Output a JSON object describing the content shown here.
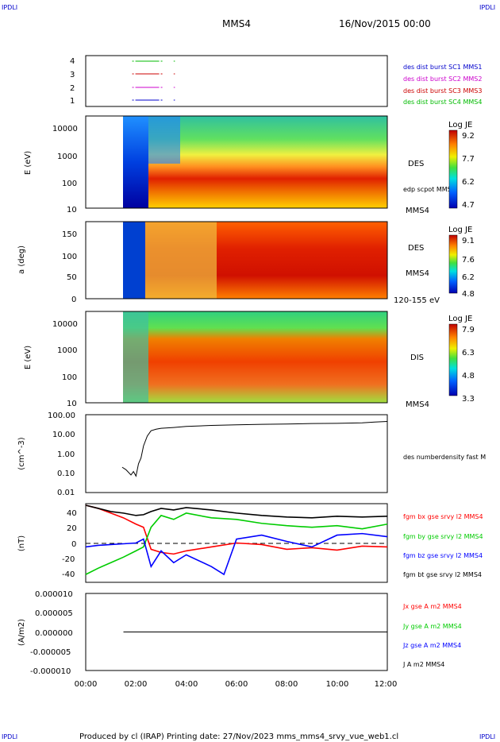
{
  "corner_label": "IPDLI",
  "header": {
    "spacecraft": "MMS4",
    "date": "16/Nov/2015 00:00"
  },
  "footer": "Produced by cl (IRAP)   Printing date: 27/Nov/2023   mms_mms4_srvy_vue_web1.cl",
  "time_axis": {
    "ticks": [
      "00:00",
      "02:00",
      "04:00",
      "06:00",
      "08:00",
      "10:00",
      "12:00"
    ],
    "range_hours": [
      0,
      12
    ]
  },
  "chart_data": [
    {
      "type": "line",
      "panel": "burst",
      "y_ticks": [
        "4",
        "3",
        "2",
        "1"
      ],
      "series": [
        {
          "name": "des dist burst SC1 MMS1",
          "color": "#0000cc",
          "row": 1,
          "segments": [
            [
              1.85,
              3.1
            ],
            [
              3.5,
              3.55
            ]
          ]
        },
        {
          "name": "des dist burst SC2 MMS2",
          "color": "#cc00cc",
          "row": 2,
          "segments": [
            [
              1.85,
              3.1
            ],
            [
              3.5,
              3.55
            ]
          ]
        },
        {
          "name": "des dist burst SC3 MMS3",
          "color": "#cc0000",
          "row": 3,
          "segments": [
            [
              1.85,
              3.1
            ],
            [
              3.5,
              3.55
            ]
          ]
        },
        {
          "name": "des dist burst SC4 MMS4",
          "color": "#00bb00",
          "row": 4,
          "segments": [
            [
              1.85,
              3.1
            ],
            [
              3.5,
              3.55
            ]
          ]
        }
      ]
    },
    {
      "type": "heatmap",
      "panel": "des_energy",
      "ylabel": "E (eV)",
      "y_ticks": [
        "10000",
        "1000",
        "100",
        "10"
      ],
      "right_labels": [
        "DES",
        "MMS4"
      ],
      "overlay_label": "edp scpot MMS4",
      "colorbar": {
        "title": "Log JE",
        "ticks": [
          "9.2",
          "7.7",
          "6.2",
          "4.7"
        ]
      }
    },
    {
      "type": "heatmap",
      "panel": "des_pitch",
      "ylabel": "a (deg)",
      "y_ticks": [
        "150",
        "100",
        "50",
        "0"
      ],
      "right_labels": [
        "DES",
        "MMS4",
        "120-155 eV"
      ],
      "colorbar": {
        "title": "Log JE",
        "ticks": [
          "9.1",
          "7.6",
          "6.2",
          "4.8"
        ]
      }
    },
    {
      "type": "heatmap",
      "panel": "dis_energy",
      "ylabel": "E (eV)",
      "y_ticks": [
        "10000",
        "1000",
        "100",
        "10"
      ],
      "right_labels": [
        "DIS",
        "MMS4"
      ],
      "colorbar": {
        "title": "Log JE",
        "ticks": [
          "7.9",
          "6.3",
          "4.8",
          "3.3"
        ]
      }
    },
    {
      "type": "line",
      "panel": "density",
      "ylabel": "(cm^-3)",
      "y_scale": "log",
      "y_ticks": [
        "100.00",
        "10.00",
        "1.00",
        "0.10",
        "0.01"
      ],
      "series": [
        {
          "name": "des numberdensity fast M",
          "color": "#000000",
          "x": [
            1.45,
            1.6,
            1.8,
            1.9,
            2.0,
            2.1,
            2.2,
            2.3,
            2.45,
            2.6,
            2.8,
            3.0,
            3.5,
            4.0,
            5.0,
            6.0,
            7.0,
            8.0,
            9.0,
            10.0,
            11.0,
            11.5,
            12.0
          ],
          "y": [
            0.2,
            0.15,
            0.08,
            0.12,
            0.07,
            0.3,
            0.6,
            2.5,
            8.0,
            15.0,
            18.0,
            20.0,
            22.0,
            25.0,
            28.0,
            30.0,
            32.0,
            33.0,
            35.0,
            36.0,
            38.0,
            42.0,
            45.0
          ]
        }
      ]
    },
    {
      "type": "line",
      "panel": "magnetic_field",
      "ylabel": "(nT)",
      "y_ticks": [
        "40",
        "20",
        "0",
        "-20",
        "-40"
      ],
      "ylim": [
        -50,
        50
      ],
      "series": [
        {
          "name": "fgm bx gse srvy l2 MMS4",
          "color": "#ff0000",
          "x": [
            0,
            0.5,
            1.0,
            1.5,
            2.0,
            2.3,
            2.6,
            3.0,
            3.5,
            4.0,
            5.0,
            6.0,
            7.0,
            8.0,
            9.0,
            10.0,
            11.0,
            12.0
          ],
          "y": [
            48,
            44,
            38,
            32,
            24,
            20,
            -8,
            -12,
            -14,
            -10,
            -5,
            0,
            -2,
            -8,
            -6,
            -9,
            -4,
            -5
          ]
        },
        {
          "name": "fgm by gse srvy l2 MMS4",
          "color": "#00cc00",
          "x": [
            0,
            0.5,
            1.0,
            1.5,
            2.0,
            2.3,
            2.6,
            3.0,
            3.5,
            4.0,
            5.0,
            6.0,
            7.0,
            8.0,
            9.0,
            10.0,
            11.0,
            12.0
          ],
          "y": [
            -40,
            -32,
            -25,
            -18,
            -10,
            -5,
            20,
            35,
            30,
            38,
            32,
            30,
            25,
            22,
            20,
            22,
            18,
            24
          ]
        },
        {
          "name": "fgm bz gse srvy l2 MMS4",
          "color": "#0000ff",
          "x": [
            0,
            0.5,
            1.0,
            1.5,
            2.0,
            2.3,
            2.6,
            3.0,
            3.5,
            4.0,
            5.0,
            5.5,
            6.0,
            7.0,
            8.0,
            9.0,
            10.0,
            11.0,
            12.0
          ],
          "y": [
            -5,
            -3,
            -2,
            -1,
            0,
            5,
            -30,
            -10,
            -25,
            -15,
            -30,
            -40,
            5,
            10,
            2,
            -5,
            10,
            12,
            8
          ]
        },
        {
          "name": "fgm bt gse srvy l2 MMS4",
          "color": "#000000",
          "x": [
            0,
            0.5,
            1.0,
            1.5,
            2.0,
            2.3,
            2.6,
            3.0,
            3.5,
            4.0,
            5.0,
            6.0,
            7.0,
            8.0,
            9.0,
            10.0,
            11.0,
            12.0
          ],
          "y": [
            48,
            44,
            40,
            38,
            35,
            36,
            40,
            44,
            42,
            45,
            42,
            38,
            35,
            33,
            32,
            34,
            33,
            34
          ]
        }
      ]
    },
    {
      "type": "line",
      "panel": "current_density",
      "ylabel": "(A/m2)",
      "y_ticks": [
        "0.000010",
        "0.000005",
        "0.000000",
        "-0.000005",
        "-0.000010"
      ],
      "ylim": [
        -1e-05,
        1e-05
      ],
      "series": [
        {
          "name": "Jx gse A m2 MMS4",
          "color": "#ff0000",
          "x": [
            1.5,
            12
          ],
          "y": [
            0,
            0
          ]
        },
        {
          "name": "Jy gse A m2 MMS4",
          "color": "#00cc00",
          "x": [
            1.5,
            12
          ],
          "y": [
            0,
            0
          ]
        },
        {
          "name": "Jz gse A m2 MMS4",
          "color": "#0000ff",
          "x": [
            1.5,
            12
          ],
          "y": [
            0,
            0
          ]
        },
        {
          "name": "J A m2 MMS4",
          "color": "#000000",
          "x": [
            1.5,
            12
          ],
          "y": [
            0,
            0
          ]
        }
      ]
    }
  ]
}
